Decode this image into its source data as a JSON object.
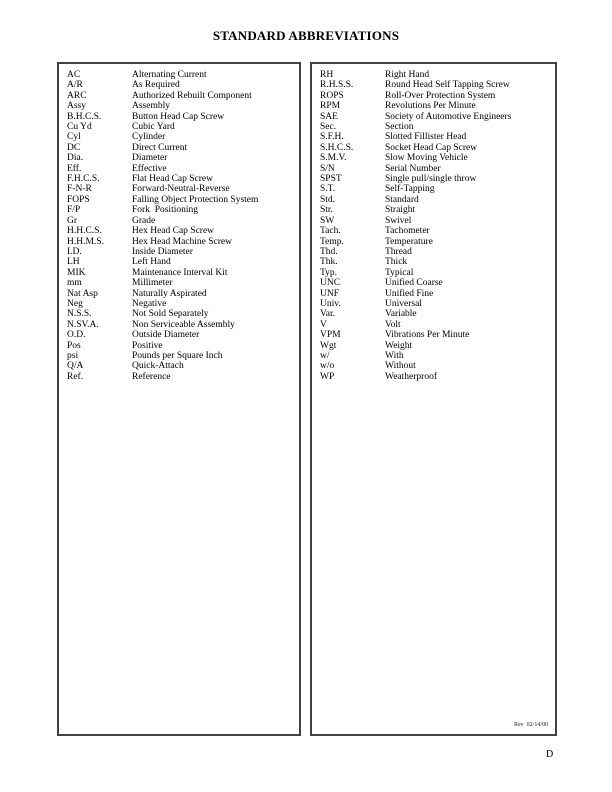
{
  "page": {
    "title": "STANDARD ABBREVIATIONS",
    "revision": "Rev  02/14/00",
    "footer_letter": "D"
  },
  "left_column": {
    "entries": [
      {
        "abbr": "AC",
        "meaning": "Alternating Current"
      },
      {
        "abbr": "A/R",
        "meaning": "As Required"
      },
      {
        "abbr": "ARC",
        "meaning": "Authorized Rebuilt Component"
      },
      {
        "abbr": "Assy",
        "meaning": "Assembly"
      },
      {
        "abbr": "B.H.C.S.",
        "meaning": "Button Head Cap Screw"
      },
      {
        "abbr": "Cu Yd",
        "meaning": "Cubic Yard"
      },
      {
        "abbr": "Cyl",
        "meaning": "Cylinder"
      },
      {
        "abbr": "DC",
        "meaning": "Direct Current"
      },
      {
        "abbr": "Dia.",
        "meaning": "Diameter"
      },
      {
        "abbr": "Eff.",
        "meaning": "Effective"
      },
      {
        "abbr": "F.H.C.S.",
        "meaning": "Flat Head Cap Screw"
      },
      {
        "abbr": "F-N-R",
        "meaning": "Forward-Neutral-Reverse"
      },
      {
        "abbr": "FOPS",
        "meaning": "Falling Object Protection System"
      },
      {
        "abbr": "F/P",
        "meaning": "Fork  Positioning"
      },
      {
        "abbr": "Gr",
        "meaning": "Grade"
      },
      {
        "abbr": "H.H.C.S.",
        "meaning": "Hex Head Cap Screw"
      },
      {
        "abbr": "H.H.M.S.",
        "meaning": "Hex Head Machine Screw"
      },
      {
        "abbr": "I.D.",
        "meaning": "Inside Diameter"
      },
      {
        "abbr": "LH",
        "meaning": "Left Hand"
      },
      {
        "abbr": "MIK",
        "meaning": "Maintenance Interval Kit"
      },
      {
        "abbr": "mm",
        "meaning": "Millimeter"
      },
      {
        "abbr": "Nat Asp",
        "meaning": "Naturally Aspirated"
      },
      {
        "abbr": "Neg",
        "meaning": "Negative"
      },
      {
        "abbr": "N.S.S.",
        "meaning": "Not Sold Separately"
      },
      {
        "abbr": "N.SV.A.",
        "meaning": "Non Serviceable Assembly"
      },
      {
        "abbr": "O.D.",
        "meaning": "Outside Diameter"
      },
      {
        "abbr": "Pos",
        "meaning": "Positive"
      },
      {
        "abbr": "psi",
        "meaning": "Pounds per Square Inch"
      },
      {
        "abbr": "Q/A",
        "meaning": "Quick-Attach"
      },
      {
        "abbr": "Ref.",
        "meaning": "Reference"
      }
    ]
  },
  "right_column": {
    "entries": [
      {
        "abbr": "RH",
        "meaning": "Right Hand"
      },
      {
        "abbr": "R.H.S.S.",
        "meaning": "Round Head Self Tapping Screw"
      },
      {
        "abbr": "ROPS",
        "meaning": "Roll-Over Protection System"
      },
      {
        "abbr": "RPM",
        "meaning": "Revolutions Per Minute"
      },
      {
        "abbr": "SAE",
        "meaning": "Society of Automotive Engineers"
      },
      {
        "abbr": "Sec.",
        "meaning": "Section"
      },
      {
        "abbr": "S.F.H.",
        "meaning": "Slotted Fillister Head"
      },
      {
        "abbr": "S.H.C.S.",
        "meaning": "Socket Head Cap Screw"
      },
      {
        "abbr": "S.M.V.",
        "meaning": "Slow Moving Vehicle"
      },
      {
        "abbr": "S/N",
        "meaning": "Serial Number"
      },
      {
        "abbr": "SPST",
        "meaning": "Single pull/single throw"
      },
      {
        "abbr": "S.T.",
        "meaning": "Self-Tapping"
      },
      {
        "abbr": "Std.",
        "meaning": "Standard"
      },
      {
        "abbr": "Str.",
        "meaning": "Straight"
      },
      {
        "abbr": "SW",
        "meaning": "Swivel"
      },
      {
        "abbr": "Tach.",
        "meaning": "Tachometer"
      },
      {
        "abbr": "Temp.",
        "meaning": "Temperature"
      },
      {
        "abbr": "Thd.",
        "meaning": "Thread"
      },
      {
        "abbr": "Thk.",
        "meaning": "Thick"
      },
      {
        "abbr": "Typ.",
        "meaning": "Typical"
      },
      {
        "abbr": "UNC",
        "meaning": "Unified Coarse"
      },
      {
        "abbr": "UNF",
        "meaning": "Unified Fine"
      },
      {
        "abbr": "Univ.",
        "meaning": "Universal"
      },
      {
        "abbr": "Var.",
        "meaning": "Variable"
      },
      {
        "abbr": "V",
        "meaning": "Volt"
      },
      {
        "abbr": "VPM",
        "meaning": "Vibrations Per Minute"
      },
      {
        "abbr": "Wgt",
        "meaning": "Weight"
      },
      {
        "abbr": "w/",
        "meaning": "With"
      },
      {
        "abbr": "w/o",
        "meaning": "Without"
      },
      {
        "abbr": "WP",
        "meaning": "Weatherproof"
      }
    ]
  }
}
